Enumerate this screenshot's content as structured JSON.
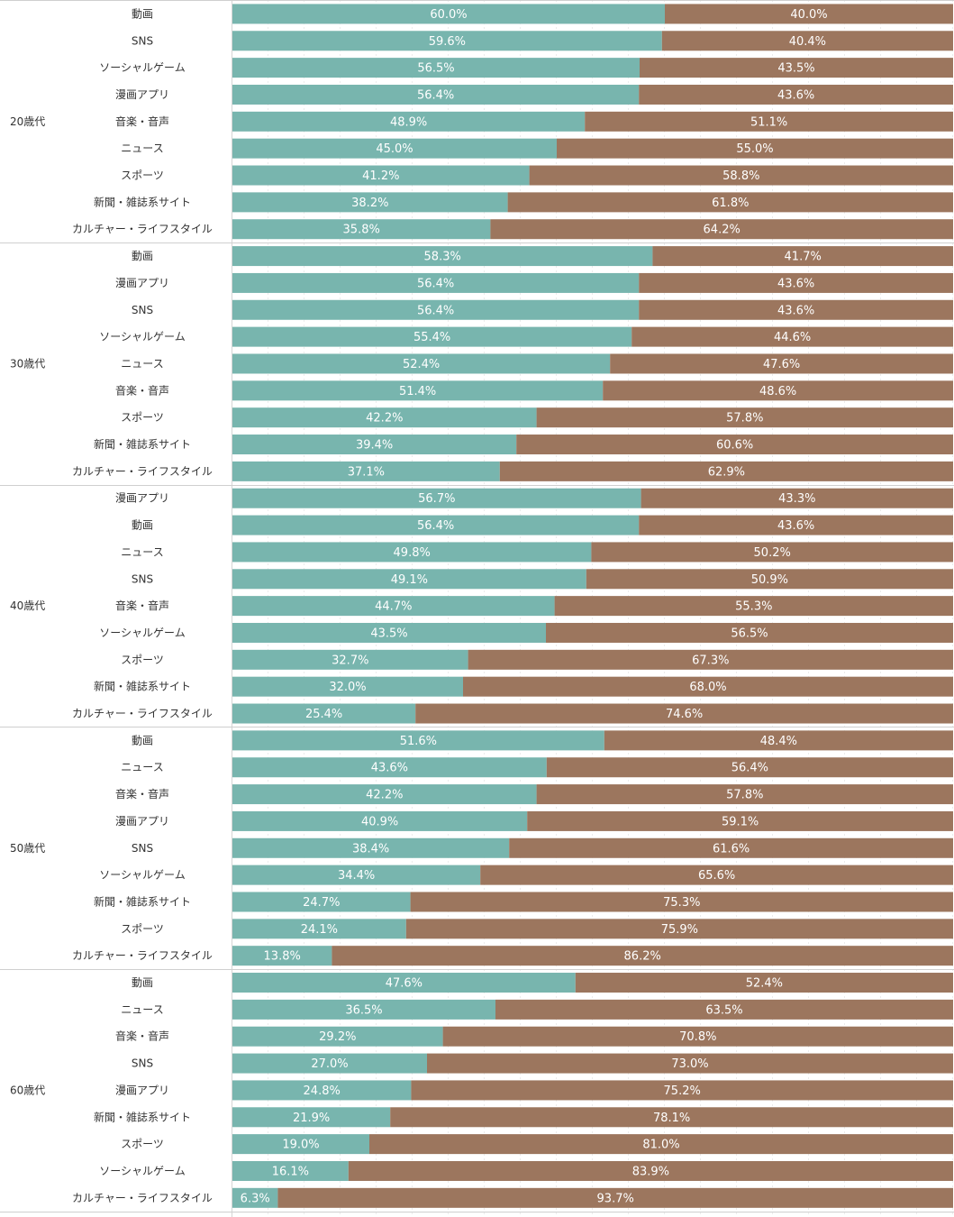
{
  "chart_data": {
    "type": "bar",
    "orientation": "horizontal",
    "stacked": true,
    "normalized_to": 100,
    "xlim": [
      0,
      100
    ],
    "series_colors": [
      "#78b5ae",
      "#9c765e"
    ],
    "groups": [
      {
        "label": "20歳代",
        "rows": [
          {
            "category": "動画",
            "values": [
              60.0,
              40.0
            ],
            "labels": [
              "60.0%",
              "40.0%"
            ]
          },
          {
            "category": "SNS",
            "values": [
              59.6,
              40.4
            ],
            "labels": [
              "59.6%",
              "40.4%"
            ]
          },
          {
            "category": "ソーシャルゲーム",
            "values": [
              56.5,
              43.5
            ],
            "labels": [
              "56.5%",
              "43.5%"
            ]
          },
          {
            "category": "漫画アプリ",
            "values": [
              56.4,
              43.6
            ],
            "labels": [
              "56.4%",
              "43.6%"
            ]
          },
          {
            "category": "音楽・音声",
            "values": [
              48.9,
              51.1
            ],
            "labels": [
              "48.9%",
              "51.1%"
            ]
          },
          {
            "category": "ニュース",
            "values": [
              45.0,
              55.0
            ],
            "labels": [
              "45.0%",
              "55.0%"
            ]
          },
          {
            "category": "スポーツ",
            "values": [
              41.2,
              58.8
            ],
            "labels": [
              "41.2%",
              "58.8%"
            ]
          },
          {
            "category": "新聞・雑誌系サイト",
            "values": [
              38.2,
              61.8
            ],
            "labels": [
              "38.2%",
              "61.8%"
            ]
          },
          {
            "category": "カルチャー・ライフスタイル",
            "values": [
              35.8,
              64.2
            ],
            "labels": [
              "35.8%",
              "64.2%"
            ]
          }
        ]
      },
      {
        "label": "30歳代",
        "rows": [
          {
            "category": "動画",
            "values": [
              58.3,
              41.7
            ],
            "labels": [
              "58.3%",
              "41.7%"
            ]
          },
          {
            "category": "漫画アプリ",
            "values": [
              56.4,
              43.6
            ],
            "labels": [
              "56.4%",
              "43.6%"
            ]
          },
          {
            "category": "SNS",
            "values": [
              56.4,
              43.6
            ],
            "labels": [
              "56.4%",
              "43.6%"
            ]
          },
          {
            "category": "ソーシャルゲーム",
            "values": [
              55.4,
              44.6
            ],
            "labels": [
              "55.4%",
              "44.6%"
            ]
          },
          {
            "category": "ニュース",
            "values": [
              52.4,
              47.6
            ],
            "labels": [
              "52.4%",
              "47.6%"
            ]
          },
          {
            "category": "音楽・音声",
            "values": [
              51.4,
              48.6
            ],
            "labels": [
              "51.4%",
              "48.6%"
            ]
          },
          {
            "category": "スポーツ",
            "values": [
              42.2,
              57.8
            ],
            "labels": [
              "42.2%",
              "57.8%"
            ]
          },
          {
            "category": "新聞・雑誌系サイト",
            "values": [
              39.4,
              60.6
            ],
            "labels": [
              "39.4%",
              "60.6%"
            ]
          },
          {
            "category": "カルチャー・ライフスタイル",
            "values": [
              37.1,
              62.9
            ],
            "labels": [
              "37.1%",
              "62.9%"
            ]
          }
        ]
      },
      {
        "label": "40歳代",
        "rows": [
          {
            "category": "漫画アプリ",
            "values": [
              56.7,
              43.3
            ],
            "labels": [
              "56.7%",
              "43.3%"
            ]
          },
          {
            "category": "動画",
            "values": [
              56.4,
              43.6
            ],
            "labels": [
              "56.4%",
              "43.6%"
            ]
          },
          {
            "category": "ニュース",
            "values": [
              49.8,
              50.2
            ],
            "labels": [
              "49.8%",
              "50.2%"
            ]
          },
          {
            "category": "SNS",
            "values": [
              49.1,
              50.9
            ],
            "labels": [
              "49.1%",
              "50.9%"
            ]
          },
          {
            "category": "音楽・音声",
            "values": [
              44.7,
              55.3
            ],
            "labels": [
              "44.7%",
              "55.3%"
            ]
          },
          {
            "category": "ソーシャルゲーム",
            "values": [
              43.5,
              56.5
            ],
            "labels": [
              "43.5%",
              "56.5%"
            ]
          },
          {
            "category": "スポーツ",
            "values": [
              32.7,
              67.3
            ],
            "labels": [
              "32.7%",
              "67.3%"
            ]
          },
          {
            "category": "新聞・雑誌系サイト",
            "values": [
              32.0,
              68.0
            ],
            "labels": [
              "32.0%",
              "68.0%"
            ]
          },
          {
            "category": "カルチャー・ライフスタイル",
            "values": [
              25.4,
              74.6
            ],
            "labels": [
              "25.4%",
              "74.6%"
            ]
          }
        ]
      },
      {
        "label": "50歳代",
        "rows": [
          {
            "category": "動画",
            "values": [
              51.6,
              48.4
            ],
            "labels": [
              "51.6%",
              "48.4%"
            ]
          },
          {
            "category": "ニュース",
            "values": [
              43.6,
              56.4
            ],
            "labels": [
              "43.6%",
              "56.4%"
            ]
          },
          {
            "category": "音楽・音声",
            "values": [
              42.2,
              57.8
            ],
            "labels": [
              "42.2%",
              "57.8%"
            ]
          },
          {
            "category": "漫画アプリ",
            "values": [
              40.9,
              59.1
            ],
            "labels": [
              "40.9%",
              "59.1%"
            ]
          },
          {
            "category": "SNS",
            "values": [
              38.4,
              61.6
            ],
            "labels": [
              "38.4%",
              "61.6%"
            ]
          },
          {
            "category": "ソーシャルゲーム",
            "values": [
              34.4,
              65.6
            ],
            "labels": [
              "34.4%",
              "65.6%"
            ]
          },
          {
            "category": "新聞・雑誌系サイト",
            "values": [
              24.7,
              75.3
            ],
            "labels": [
              "24.7%",
              "75.3%"
            ]
          },
          {
            "category": "スポーツ",
            "values": [
              24.1,
              75.9
            ],
            "labels": [
              "24.1%",
              "75.9%"
            ]
          },
          {
            "category": "カルチャー・ライフスタイル",
            "values": [
              13.8,
              86.2
            ],
            "labels": [
              "13.8%",
              "86.2%"
            ]
          }
        ]
      },
      {
        "label": "60歳代",
        "rows": [
          {
            "category": "動画",
            "values": [
              47.6,
              52.4
            ],
            "labels": [
              "47.6%",
              "52.4%"
            ]
          },
          {
            "category": "ニュース",
            "values": [
              36.5,
              63.5
            ],
            "labels": [
              "36.5%",
              "63.5%"
            ]
          },
          {
            "category": "音楽・音声",
            "values": [
              29.2,
              70.8
            ],
            "labels": [
              "29.2%",
              "70.8%"
            ]
          },
          {
            "category": "SNS",
            "values": [
              27.0,
              73.0
            ],
            "labels": [
              "27.0%",
              "73.0%"
            ]
          },
          {
            "category": "漫画アプリ",
            "values": [
              24.8,
              75.2
            ],
            "labels": [
              "24.8%",
              "75.2%"
            ]
          },
          {
            "category": "新聞・雑誌系サイト",
            "values": [
              21.9,
              78.1
            ],
            "labels": [
              "21.9%",
              "78.1%"
            ]
          },
          {
            "category": "スポーツ",
            "values": [
              19.0,
              81.0
            ],
            "labels": [
              "19.0%",
              "81.0%"
            ]
          },
          {
            "category": "ソーシャルゲーム",
            "values": [
              16.1,
              83.9
            ],
            "labels": [
              "16.1%",
              "83.9%"
            ]
          },
          {
            "category": "カルチャー・ライフスタイル",
            "values": [
              6.3,
              93.7
            ],
            "labels": [
              "6.3%",
              "93.7%"
            ]
          }
        ]
      }
    ]
  }
}
